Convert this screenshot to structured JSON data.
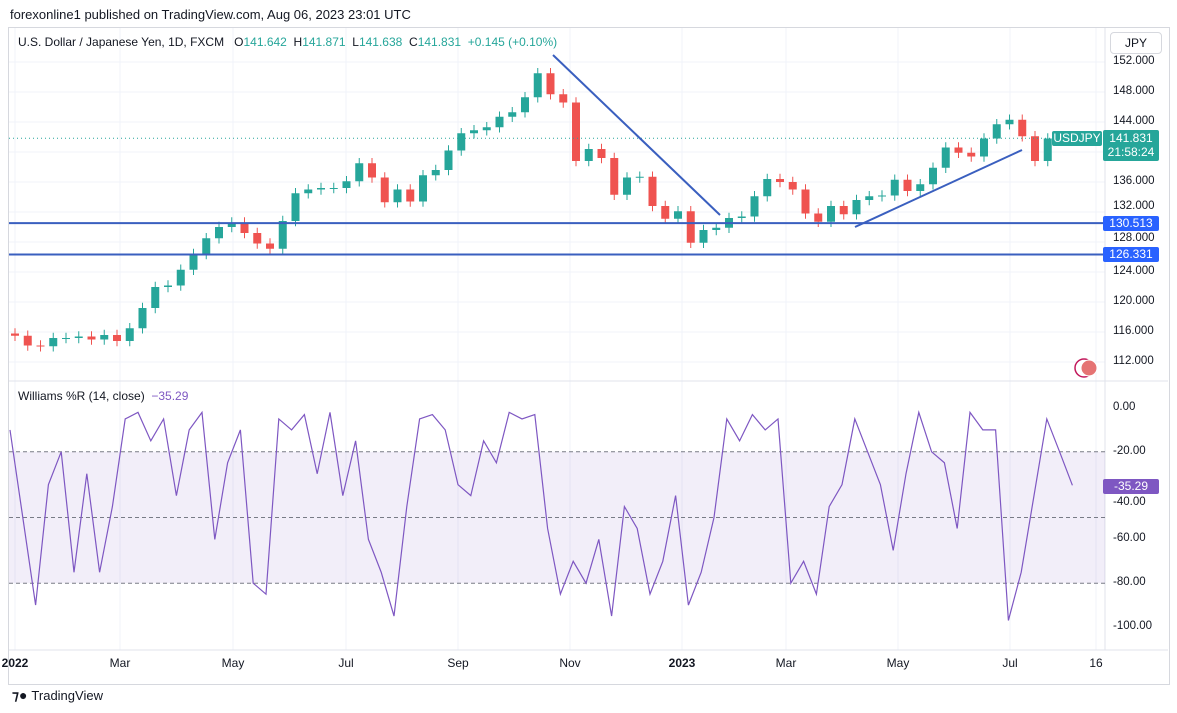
{
  "published": "forexonline1 published on TradingView.com, Aug 06, 2023 23:01 UTC",
  "legend": {
    "title": "U.S. Dollar / Japanese Yen, 1D, FXCM",
    "o_label": "O",
    "o": "141.642",
    "h_label": "H",
    "h": "141.871",
    "l_label": "L",
    "l": "141.638",
    "c_label": "C",
    "c": "141.831",
    "change": "+0.145 (+0.10%)"
  },
  "currency": "JPY",
  "price_ticks": [
    "152.000",
    "148.000",
    "144.000",
    "136.000",
    "132.000",
    "128.000",
    "124.000",
    "120.000",
    "116.000",
    "112.000"
  ],
  "price_tick_values": [
    152,
    148,
    144,
    136,
    132,
    128,
    124,
    120,
    116,
    112
  ],
  "symbol_label": "USDJPY",
  "last_price": "141.831",
  "countdown": "21:58:24",
  "levels": [
    {
      "label": "130.513",
      "value": 130.513
    },
    {
      "label": "126.331",
      "value": 126.331
    }
  ],
  "williams": {
    "title": "Williams %R (14, close)",
    "value": "−35.29",
    "value_label": "-35.29",
    "ticks": [
      "0.00",
      "-20.00",
      "-40.00",
      "-60.00",
      "-80.00",
      "-100.00"
    ]
  },
  "time_ticks": [
    "2022",
    "Mar",
    "May",
    "Jul",
    "Sep",
    "Nov",
    "2023",
    "Mar",
    "May",
    "Jul",
    "16"
  ],
  "brand": "TradingView",
  "colors": {
    "up": "#26a69a",
    "down": "#ef5350",
    "line": "#3a5fbf",
    "label": "#2962ff",
    "wr": "#7e57c2"
  },
  "chart_data": {
    "type": "candlestick",
    "interval": "weekly approximation",
    "closes": [
      115.5,
      114.2,
      114.1,
      115.2,
      115.2,
      115.4,
      115.0,
      115.6,
      114.8,
      116.5,
      119.2,
      122.0,
      122.2,
      124.3,
      126.4,
      128.5,
      130.0,
      130.6,
      129.2,
      127.8,
      127.1,
      130.8,
      134.5,
      135.0,
      135.2,
      135.2,
      136.1,
      138.5,
      136.6,
      133.3,
      135.0,
      133.4,
      136.9,
      137.6,
      140.2,
      142.5,
      142.9,
      143.3,
      144.7,
      145.3,
      147.3,
      150.5,
      147.7,
      146.6,
      138.8,
      140.4,
      139.2,
      134.3,
      136.6,
      136.7,
      132.8,
      131.1,
      132.1,
      127.9,
      129.6,
      129.9,
      131.2,
      131.4,
      134.1,
      136.4,
      136.0,
      135.0,
      131.8,
      130.7,
      132.8,
      131.7,
      133.6,
      134.1,
      134.2,
      136.3,
      134.8,
      135.7,
      137.9,
      140.6,
      139.9,
      139.4,
      141.8,
      143.7,
      144.3,
      142.1,
      138.8,
      141.8,
      141.6,
      141.8
    ],
    "williams_r": [
      -10,
      -50,
      -90,
      -35,
      -20,
      -75,
      -30,
      -75,
      -45,
      -5,
      -2,
      -15,
      -5,
      -40,
      -10,
      -2,
      -60,
      -25,
      -10,
      -80,
      -85,
      -5,
      -10,
      -3,
      -30,
      -2,
      -40,
      -15,
      -60,
      -75,
      -95,
      -45,
      -5,
      -3,
      -10,
      -35,
      -40,
      -15,
      -25,
      -2,
      -5,
      -3,
      -55,
      -85,
      -70,
      -80,
      -60,
      -95,
      -45,
      -55,
      -85,
      -70,
      -40,
      -90,
      -75,
      -50,
      -5,
      -15,
      -3,
      -10,
      -5,
      -80,
      -70,
      -85,
      -45,
      -35,
      -5,
      -20,
      -35,
      -65,
      -30,
      -2,
      -20,
      -25,
      -55,
      -2,
      -10,
      -10,
      -97,
      -75,
      -40,
      -5,
      -20,
      -35.29
    ],
    "price_range": [
      110,
      154
    ],
    "wr_range": [
      -100,
      0
    ]
  }
}
